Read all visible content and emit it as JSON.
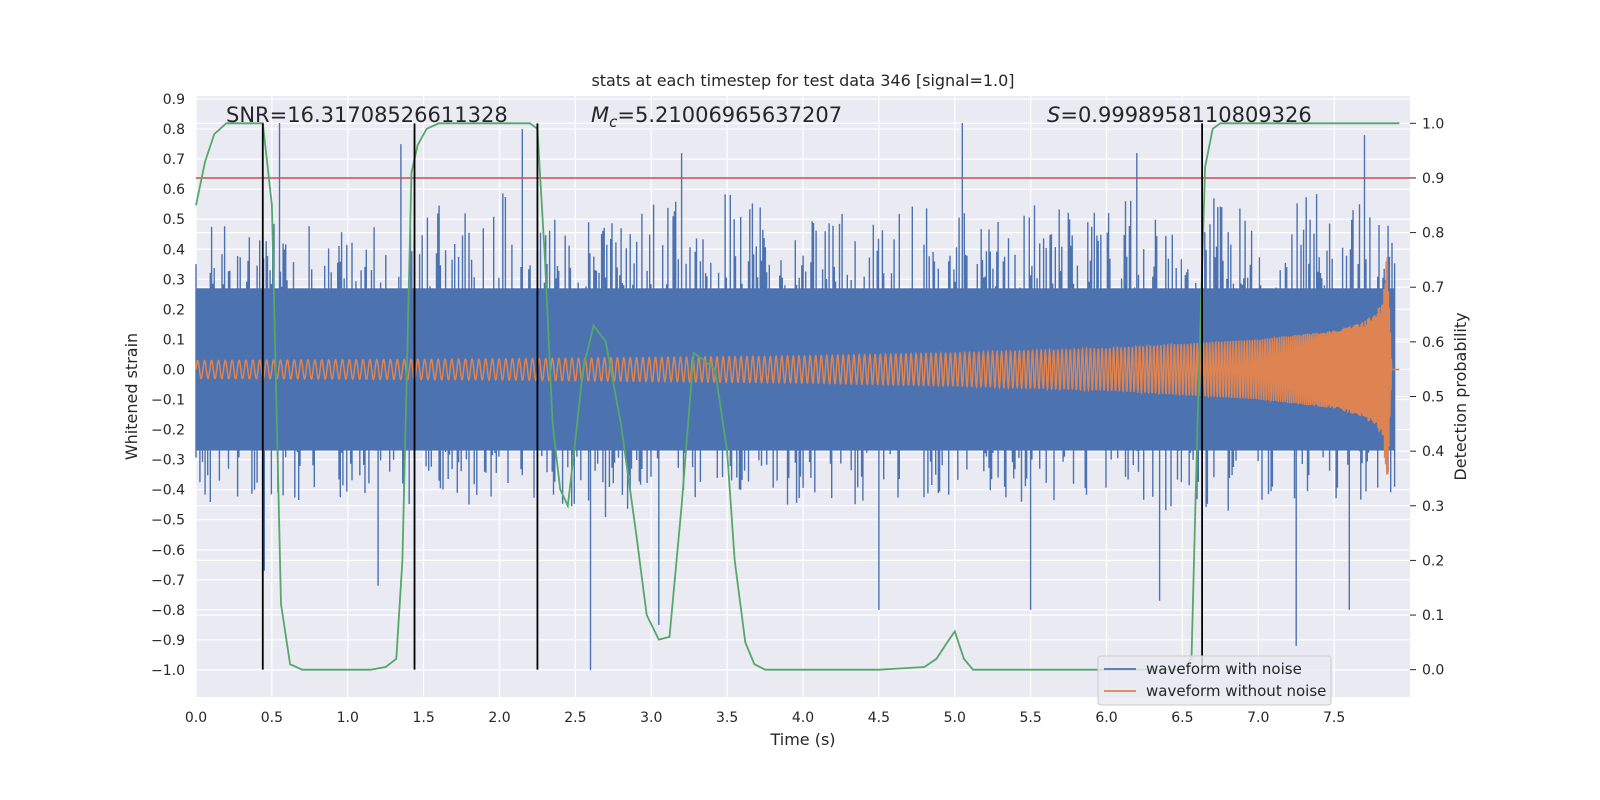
{
  "chart_data": {
    "type": "line",
    "title": "stats at each timestep for test data 346 [signal=1.0]",
    "xlabel": "Time (s)",
    "ylabel_left": "Whitened strain",
    "ylabel_right": "Detection probability",
    "xlim": [
      0.0,
      8.0
    ],
    "ylim_left": [
      -1.09,
      0.91
    ],
    "ylim_right": [
      -0.05,
      1.05
    ],
    "x_ticks": [
      "0.0",
      "0.5",
      "1.0",
      "1.5",
      "2.0",
      "2.5",
      "3.0",
      "3.5",
      "4.0",
      "4.5",
      "5.0",
      "5.5",
      "6.0",
      "6.5",
      "7.0",
      "7.5"
    ],
    "y_left_ticks": [
      "0.9",
      "0.8",
      "0.7",
      "0.6",
      "0.5",
      "0.4",
      "0.3",
      "0.2",
      "0.1",
      "0.0",
      "−0.1",
      "−0.2",
      "−0.3",
      "−0.4",
      "−0.5",
      "−0.6",
      "−0.7",
      "−0.8",
      "−0.9",
      "−1.0"
    ],
    "y_right_ticks": [
      "1.0",
      "0.9",
      "0.8",
      "0.7",
      "0.6",
      "0.5",
      "0.4",
      "0.3",
      "0.2",
      "0.1",
      "0.0"
    ],
    "grid": true,
    "legend_position": "lower-right",
    "annotations": {
      "snr": "SNR=16.31708526611328",
      "mc": "=5.21006965637207",
      "mc_symbol": "M",
      "mc_sub": "c",
      "s": "=0.9998958110809326",
      "s_symbol": "S"
    },
    "threshold": 0.9,
    "markers_x": [
      0.44,
      1.44,
      2.25,
      6.63
    ],
    "series": [
      {
        "name": "waveform with noise",
        "color": "#4c72b0",
        "axis": "left",
        "envelope": {
          "x": [
            0.0,
            0.5,
            1.0,
            1.5,
            2.0,
            2.5,
            3.0,
            3.5,
            4.0,
            4.5,
            5.0,
            5.5,
            6.0,
            6.5,
            7.0,
            7.5,
            7.9
          ],
          "upper": [
            0.5,
            0.5,
            0.5,
            0.55,
            0.6,
            0.5,
            0.55,
            0.6,
            0.55,
            0.55,
            0.6,
            0.55,
            0.55,
            0.6,
            0.55,
            0.6,
            0.55
          ],
          "lower": [
            -0.45,
            -0.45,
            -0.45,
            -0.45,
            -0.45,
            -0.5,
            -0.5,
            -0.45,
            -0.45,
            -0.45,
            -0.45,
            -0.45,
            -0.45,
            -0.5,
            -0.45,
            -0.45,
            -0.45
          ],
          "spikes": [
            [
              0.55,
              0.82
            ],
            [
              1.35,
              0.75
            ],
            [
              2.15,
              0.8
            ],
            [
              3.2,
              0.72
            ],
            [
              5.05,
              0.82
            ],
            [
              6.2,
              0.72
            ],
            [
              7.7,
              0.78
            ],
            [
              0.45,
              -0.67
            ],
            [
              1.2,
              -0.72
            ],
            [
              2.6,
              -1.0
            ],
            [
              3.05,
              -0.85
            ],
            [
              4.5,
              -0.8
            ],
            [
              5.5,
              -0.8
            ],
            [
              6.35,
              -0.77
            ],
            [
              7.25,
              -0.92
            ],
            [
              7.6,
              -0.8
            ]
          ]
        }
      },
      {
        "name": "waveform without noise",
        "color": "#dd8452",
        "axis": "left",
        "amplitude": {
          "x": [
            0.0,
            2.0,
            4.0,
            5.0,
            6.0,
            6.5,
            7.0,
            7.5,
            7.7,
            7.82,
            7.85,
            7.88
          ],
          "values": [
            0.03,
            0.035,
            0.045,
            0.055,
            0.07,
            0.085,
            0.1,
            0.13,
            0.16,
            0.22,
            0.4,
            0.0
          ]
        }
      },
      {
        "name": "detection probability",
        "color": "#55a868",
        "axis": "right",
        "x": [
          0.0,
          0.06,
          0.12,
          0.2,
          0.3,
          0.4,
          0.44,
          0.5,
          0.56,
          0.62,
          0.7,
          0.8,
          1.0,
          1.15,
          1.25,
          1.32,
          1.36,
          1.42,
          1.46,
          1.52,
          1.6,
          1.7,
          2.0,
          2.2,
          2.25,
          2.3,
          2.35,
          2.4,
          2.45,
          2.5,
          2.55,
          2.62,
          2.7,
          2.8,
          2.9,
          2.97,
          3.05,
          3.12,
          3.2,
          3.28,
          3.33,
          3.42,
          3.5,
          3.55,
          3.62,
          3.68,
          3.75,
          4.0,
          4.5,
          4.8,
          4.88,
          4.95,
          5.0,
          5.06,
          5.12,
          5.2,
          5.5,
          6.0,
          6.5,
          6.56,
          6.6,
          6.65,
          6.7,
          6.75,
          7.0,
          7.5,
          7.93
        ],
        "values": [
          0.85,
          0.93,
          0.98,
          1.0,
          1.0,
          1.0,
          1.0,
          0.85,
          0.12,
          0.01,
          0.0,
          0.0,
          0.0,
          0.0,
          0.005,
          0.02,
          0.2,
          0.91,
          0.96,
          0.99,
          1.0,
          1.0,
          1.0,
          1.0,
          0.99,
          0.75,
          0.45,
          0.33,
          0.3,
          0.42,
          0.55,
          0.63,
          0.6,
          0.45,
          0.25,
          0.1,
          0.055,
          0.06,
          0.3,
          0.58,
          0.57,
          0.55,
          0.4,
          0.2,
          0.05,
          0.01,
          0.0,
          0.0,
          0.0,
          0.005,
          0.02,
          0.05,
          0.07,
          0.02,
          0.0,
          0.0,
          0.0,
          0.0,
          0.0,
          0.02,
          0.45,
          0.92,
          0.99,
          1.0,
          1.0,
          1.0,
          1.0
        ]
      }
    ]
  },
  "colors": {
    "axes_bg": "#eaeaf2",
    "grid": "#ffffff",
    "threshold": "#c44e52",
    "marker": "#000000",
    "text": "#262626"
  }
}
